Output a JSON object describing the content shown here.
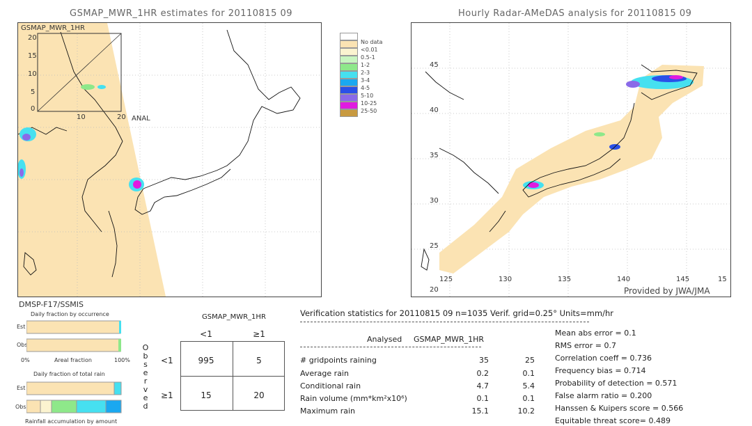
{
  "left_map": {
    "title": "GSMAP_MWR_1HR estimates for 20110815 09",
    "inset_label": "GSMAP_MWR_1HR",
    "inset_ticks_y": [
      "20",
      "15",
      "10",
      "5",
      "0"
    ],
    "inset_ticks_x": [
      "10",
      "20"
    ],
    "anal_label": "ANAL"
  },
  "right_map": {
    "title": "Hourly Radar-AMeDAS analysis for 20110815 09",
    "lat_ticks": [
      "45",
      "40",
      "35",
      "30",
      "25",
      "20"
    ],
    "lon_ticks": [
      "125",
      "130",
      "135",
      "140",
      "145",
      "15"
    ],
    "credit": "Provided by JWA/JMA"
  },
  "legend": {
    "items": [
      {
        "label": "No data",
        "color": "#ffffff"
      },
      {
        "label": "",
        "color": "#fbe3b3"
      },
      {
        "label": "<0.01",
        "color": "#fbf3d0"
      },
      {
        "label": "0.5-1",
        "color": "#c8f5c0"
      },
      {
        "label": "1-2",
        "color": "#8ee88a"
      },
      {
        "label": "2-3",
        "color": "#46e0f0"
      },
      {
        "label": "3-4",
        "color": "#1aa8f0"
      },
      {
        "label": "4-5",
        "color": "#2a50e8"
      },
      {
        "label": "5-10",
        "color": "#8a6ae8"
      },
      {
        "label": "10-25",
        "color": "#e01ae0"
      },
      {
        "label": "25-50",
        "color": "#c89a40"
      }
    ]
  },
  "sensor_label": "DMSP-F17/SSMIS",
  "occurrence_chart": {
    "title": "Daily fraction by occurrence",
    "rows": [
      "Est",
      "Obs"
    ],
    "axis_left": "0%",
    "axis_mid": "Areal fraction",
    "axis_right": "100%"
  },
  "total_rain_chart": {
    "title": "Daily fraction of total rain",
    "rows": [
      "Est",
      "Obs"
    ],
    "footer": "Rainfall accumulation by amount"
  },
  "contingency": {
    "title": "GSMAP_MWR_1HR",
    "col_headers": [
      "<1",
      "≥1"
    ],
    "row_headers": [
      "<1",
      "≥1"
    ],
    "side_label": [
      "O",
      "b",
      "s",
      "e",
      "r",
      "v",
      "e",
      "d"
    ],
    "cells": [
      [
        "995",
        "5"
      ],
      [
        "15",
        "20"
      ]
    ]
  },
  "verification": {
    "header": "Verification statistics for 20110815 09   n=1035   Verif. grid=0.25°   Units=mm/hr",
    "col_analysed": "Analysed",
    "col_gsmap": "GSMAP_MWR_1HR",
    "rows": [
      {
        "label": "# gridpoints raining",
        "a": "35",
        "g": "25"
      },
      {
        "label": "Average rain",
        "a": "0.2",
        "g": "0.1"
      },
      {
        "label": "Conditional rain",
        "a": "4.7",
        "g": "5.4"
      },
      {
        "label": "Rain volume (mm*km²x10⁶)",
        "a": "0.1",
        "g": "0.1"
      },
      {
        "label": "Maximum rain",
        "a": "15.1",
        "g": "10.2"
      }
    ],
    "scores": [
      "Mean abs error = 0.1",
      "RMS error = 0.7",
      "Correlation coeff = 0.736",
      "Frequency bias = 0.714",
      "Probability of detection = 0.571",
      "False alarm ratio = 0.200",
      "Hanssen & Kuipers score = 0.566",
      "Equitable threat score= 0.489"
    ]
  },
  "chart_data": [
    {
      "type": "table",
      "title": "GSMAP_MWR_1HR",
      "columns": [
        "<1",
        "≥1"
      ],
      "rows": [
        {
          "observed": "<1",
          "values": [
            995,
            5
          ]
        },
        {
          "observed": "≥1",
          "values": [
            15,
            20
          ]
        }
      ]
    },
    {
      "type": "table",
      "title": "Verification statistics for 20110815 09",
      "columns": [
        "Analysed",
        "GSMAP_MWR_1HR"
      ],
      "rows": [
        {
          "label": "# gridpoints raining",
          "values": [
            35,
            25
          ]
        },
        {
          "label": "Average rain",
          "values": [
            0.2,
            0.1
          ]
        },
        {
          "label": "Conditional rain",
          "values": [
            4.7,
            5.4
          ]
        },
        {
          "label": "Rain volume (mm*km²x10⁶)",
          "values": [
            0.1,
            0.1
          ]
        },
        {
          "label": "Maximum rain",
          "values": [
            15.1,
            10.2
          ]
        }
      ]
    }
  ]
}
